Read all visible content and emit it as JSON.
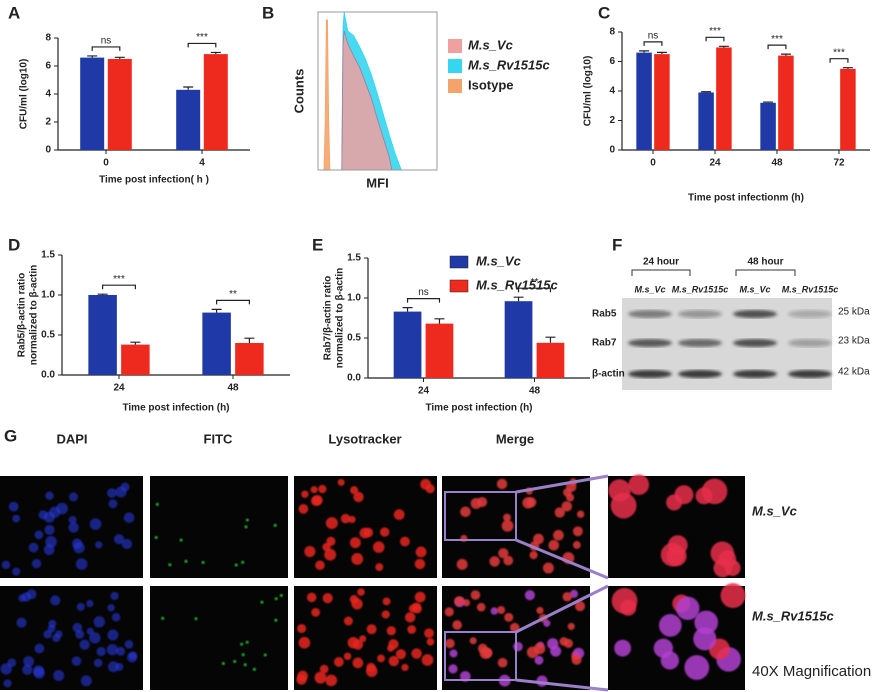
{
  "chart_data": [
    {
      "type": "bar",
      "panel": "A",
      "ylabel": [
        "CFU/ml (log10)"
      ],
      "xlabel": "Time post infection( h )",
      "categories": [
        "0",
        "4"
      ],
      "ylim": [
        0,
        8
      ],
      "yticks": [
        0,
        2,
        4,
        6,
        8
      ],
      "annotations": [
        "ns",
        "***"
      ],
      "series": [
        {
          "name": "M.s_Vc",
          "color": "#1f3aa6",
          "values": [
            6.6,
            4.3
          ],
          "errors": [
            0.12,
            0.2
          ]
        },
        {
          "name": "M.s_Rv1515c",
          "color": "#ee2a1e",
          "values": [
            6.5,
            6.85
          ],
          "errors": [
            0.12,
            0.12
          ]
        }
      ]
    },
    {
      "type": "area",
      "panel": "B",
      "xlabel": "MFI",
      "ylabel": "Counts",
      "xlim": [
        0,
        100
      ],
      "ylim": [
        0,
        100
      ],
      "series": [
        {
          "name": "M.s_Vc",
          "color": "#f0a0a0",
          "x": [
            20,
            21,
            22,
            25,
            30,
            35,
            40,
            45,
            50,
            55,
            60,
            62
          ],
          "values": [
            0,
            80,
            88,
            80,
            72,
            65,
            55,
            45,
            32,
            20,
            8,
            0
          ]
        },
        {
          "name": "M.s_Rv1515c",
          "color": "#35d6ef",
          "x": [
            20,
            21,
            22,
            25,
            30,
            35,
            40,
            45,
            50,
            55,
            60,
            65,
            70
          ],
          "values": [
            0,
            90,
            100,
            88,
            85,
            78,
            70,
            60,
            48,
            35,
            22,
            10,
            0
          ]
        },
        {
          "name": "Isotype",
          "color": "#f4a46a",
          "x": [
            5,
            6,
            7,
            8,
            9,
            10
          ],
          "values": [
            0,
            30,
            95,
            95,
            30,
            0
          ]
        }
      ]
    },
    {
      "type": "bar",
      "panel": "C",
      "ylabel": [
        "CFU/ml (log10)"
      ],
      "xlabel": "Time post infectionm (h)",
      "categories": [
        "0",
        "24",
        "48",
        "72"
      ],
      "ylim": [
        0,
        8
      ],
      "yticks": [
        0,
        2,
        4,
        6,
        8
      ],
      "annotations": [
        "ns",
        "***",
        "***",
        "***"
      ],
      "series": [
        {
          "name": "M.s_Vc",
          "color": "#1f3aa6",
          "values": [
            6.6,
            3.9,
            3.2,
            null
          ],
          "errors": [
            0.12,
            0.05,
            0.05,
            null
          ]
        },
        {
          "name": "M.s_Rv1515c",
          "color": "#ee2a1e",
          "values": [
            6.5,
            6.95,
            6.4,
            5.5
          ],
          "errors": [
            0.12,
            0.08,
            0.1,
            0.08
          ]
        }
      ]
    },
    {
      "type": "bar",
      "panel": "D",
      "ylabel": [
        "Rab5/β-actin ratio",
        "normalized to β-actin"
      ],
      "xlabel": "Time post infection (h)",
      "categories": [
        "24",
        "48"
      ],
      "ylim": [
        0,
        1.5
      ],
      "yticks": [
        {
          "value": 0,
          "label": "0.0"
        },
        0.5,
        {
          "value": 1,
          "label": "1.0"
        },
        1.5
      ],
      "annotations": [
        "***",
        "**"
      ],
      "series": [
        {
          "name": "M.s_Vc",
          "color": "#1f3aa6",
          "values": [
            1.0,
            0.78
          ],
          "errors": [
            0.01,
            0.04
          ]
        },
        {
          "name": "M.s_Rv1515c",
          "color": "#ee2a1e",
          "values": [
            0.38,
            0.4
          ],
          "errors": [
            0.03,
            0.06
          ]
        }
      ]
    },
    {
      "type": "bar",
      "panel": "E",
      "ylabel": [
        "Rab7/β-actin ratio",
        "normalized to β-actin"
      ],
      "xlabel": "Time post infection (h)",
      "legend": true,
      "categories": [
        "24",
        "48"
      ],
      "ylim": [
        0,
        1.5
      ],
      "yticks": [
        {
          "value": 0,
          "label": "0.0"
        },
        0.5,
        {
          "value": 1,
          "label": "1.0"
        },
        1.5
      ],
      "annotations": [
        "ns",
        "**"
      ],
      "series": [
        {
          "name": "M.s_Vc",
          "color": "#1f3aa6",
          "values": [
            0.83,
            0.96
          ],
          "errors": [
            0.05,
            0.05
          ]
        },
        {
          "name": "M.s_Rv1515c",
          "color": "#ee2a1e",
          "values": [
            0.68,
            0.44
          ],
          "errors": [
            0.06,
            0.07
          ]
        }
      ]
    }
  ],
  "blot": {
    "panel": "F",
    "timepoints": [
      "24 hour",
      "48 hour"
    ],
    "lanes": [
      "M.s_Vc",
      "M.s_Rv1515c",
      "M.s_Vc",
      "M.s_Rv1515c"
    ],
    "proteins": [
      "Rab5",
      "Rab7",
      "β-actin"
    ],
    "sizes": [
      "25 kDa",
      "23 kDa",
      "42 kDa"
    ]
  },
  "micrograph": {
    "panel": "G",
    "channels": [
      "DAPI",
      "FITC",
      "Lysotracker",
      "Merge"
    ],
    "rows": [
      "M.s_Vc",
      "M.s_Rv1515c"
    ],
    "note": "40X Magnification"
  }
}
